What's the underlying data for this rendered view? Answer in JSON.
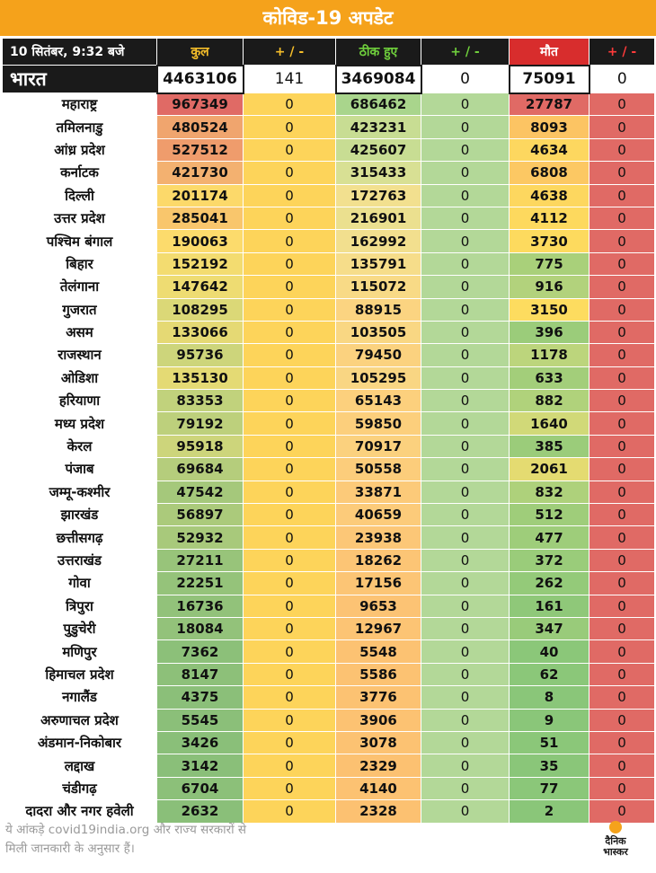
{
  "header": {
    "title": "कोविड-19 अपडेट"
  },
  "columns": {
    "date": "10 सितंबर, 9:32 बजे",
    "total": "कुल",
    "total_delta": "+ / -",
    "recovered": "ठीक हुए",
    "recovered_delta": "+ / -",
    "deaths": "मौत",
    "deaths_delta": "+ / -"
  },
  "national": {
    "name": "भारत",
    "total": "4463106",
    "total_delta": "141",
    "recovered": "3469084",
    "recovered_delta": "0",
    "deaths": "75091",
    "deaths_delta": "0"
  },
  "states": [
    {
      "name": "महाराष्ट्र",
      "total": "967349",
      "total_delta": "0",
      "recovered": "686462",
      "recovered_delta": "0",
      "deaths": "27787",
      "deaths_delta": "0",
      "colors": {
        "total": "#e06a65",
        "recovered": "#a9d58c",
        "deaths": "#e06a65"
      }
    },
    {
      "name": "तमिलनाडु",
      "total": "480524",
      "total_delta": "0",
      "recovered": "423231",
      "recovered_delta": "0",
      "deaths": "8093",
      "deaths_delta": "0",
      "colors": {
        "total": "#f0a56e",
        "recovered": "#c8dd93",
        "deaths": "#fcc463"
      }
    },
    {
      "name": "आंध्र प्रदेश",
      "total": "527512",
      "total_delta": "0",
      "recovered": "425607",
      "recovered_delta": "0",
      "deaths": "4634",
      "deaths_delta": "0",
      "colors": {
        "total": "#ef9c6c",
        "recovered": "#c8dd93",
        "deaths": "#fdd75f"
      }
    },
    {
      "name": "कर्नाटक",
      "total": "421730",
      "total_delta": "0",
      "recovered": "315433",
      "recovered_delta": "0",
      "deaths": "6808",
      "deaths_delta": "0",
      "colors": {
        "total": "#f3b170",
        "recovered": "#d8e094",
        "deaths": "#fcc863"
      }
    },
    {
      "name": "दिल्ली",
      "total": "201174",
      "total_delta": "0",
      "recovered": "172763",
      "recovered_delta": "0",
      "deaths": "4638",
      "deaths_delta": "0",
      "colors": {
        "total": "#fcd96a",
        "recovered": "#f2e08f",
        "deaths": "#fdd75f"
      }
    },
    {
      "name": "उत्तर प्रदेश",
      "total": "285041",
      "total_delta": "0",
      "recovered": "216901",
      "recovered_delta": "0",
      "deaths": "4112",
      "deaths_delta": "0",
      "colors": {
        "total": "#f9c66c",
        "recovered": "#ebe08f",
        "deaths": "#fdd95e"
      }
    },
    {
      "name": "पश्चिम बंगाल",
      "total": "190063",
      "total_delta": "0",
      "recovered": "162992",
      "recovered_delta": "0",
      "deaths": "3730",
      "deaths_delta": "0",
      "colors": {
        "total": "#fcdb6c",
        "recovered": "#f2df8e",
        "deaths": "#fdda5e"
      }
    },
    {
      "name": "बिहार",
      "total": "152192",
      "total_delta": "0",
      "recovered": "135791",
      "recovered_delta": "0",
      "deaths": "775",
      "deaths_delta": "0",
      "colors": {
        "total": "#f3dc70",
        "recovered": "#f6dd8a",
        "deaths": "#a9d07a"
      }
    },
    {
      "name": "तेलंगाना",
      "total": "147642",
      "total_delta": "0",
      "recovered": "115072",
      "recovered_delta": "0",
      "deaths": "916",
      "deaths_delta": "0",
      "colors": {
        "total": "#eedc72",
        "recovered": "#f8da86",
        "deaths": "#b2d27c"
      }
    },
    {
      "name": "गुजरात",
      "total": "108295",
      "total_delta": "0",
      "recovered": "88915",
      "recovered_delta": "0",
      "deaths": "3150",
      "deaths_delta": "0",
      "colors": {
        "total": "#dbd877",
        "recovered": "#fbd481",
        "deaths": "#fddc5f"
      }
    },
    {
      "name": "असम",
      "total": "133066",
      "total_delta": "0",
      "recovered": "103505",
      "recovered_delta": "0",
      "deaths": "396",
      "deaths_delta": "0",
      "colors": {
        "total": "#e5d974",
        "recovered": "#f9d783",
        "deaths": "#9bcc7a"
      }
    },
    {
      "name": "राजस्थान",
      "total": "95736",
      "total_delta": "0",
      "recovered": "79450",
      "recovered_delta": "0",
      "deaths": "1178",
      "deaths_delta": "0",
      "colors": {
        "total": "#cdd57b",
        "recovered": "#fbd27f",
        "deaths": "#bcd57c"
      }
    },
    {
      "name": "ओडिशा",
      "total": "135130",
      "total_delta": "0",
      "recovered": "105295",
      "recovered_delta": "0",
      "deaths": "633",
      "deaths_delta": "0",
      "colors": {
        "total": "#e4da74",
        "recovered": "#f9d683",
        "deaths": "#a3ce7a"
      }
    },
    {
      "name": "हरियाणा",
      "total": "83353",
      "total_delta": "0",
      "recovered": "65143",
      "recovered_delta": "0",
      "deaths": "882",
      "deaths_delta": "0",
      "colors": {
        "total": "#c1d27c",
        "recovered": "#fcd07d",
        "deaths": "#b0d27b"
      }
    },
    {
      "name": "मध्य प्रदेश",
      "total": "79192",
      "total_delta": "0",
      "recovered": "59850",
      "recovered_delta": "0",
      "deaths": "1640",
      "deaths_delta": "0",
      "colors": {
        "total": "#bdd07c",
        "recovered": "#fccf7c",
        "deaths": "#d1d978"
      }
    },
    {
      "name": "केरल",
      "total": "95918",
      "total_delta": "0",
      "recovered": "70917",
      "recovered_delta": "0",
      "deaths": "385",
      "deaths_delta": "0",
      "colors": {
        "total": "#cdd57b",
        "recovered": "#fbd17e",
        "deaths": "#9bcc7a"
      }
    },
    {
      "name": "पंजाब",
      "total": "69684",
      "total_delta": "0",
      "recovered": "50558",
      "recovered_delta": "0",
      "deaths": "2061",
      "deaths_delta": "0",
      "colors": {
        "total": "#b5cd7c",
        "recovered": "#fccd7b",
        "deaths": "#e4db71"
      }
    },
    {
      "name": "जम्मू-कश्मीर",
      "total": "47542",
      "total_delta": "0",
      "recovered": "33871",
      "recovered_delta": "0",
      "deaths": "832",
      "deaths_delta": "0",
      "colors": {
        "total": "#a5c87b",
        "recovered": "#fcca79",
        "deaths": "#aed17b"
      }
    },
    {
      "name": "झारखंड",
      "total": "56897",
      "total_delta": "0",
      "recovered": "40659",
      "recovered_delta": "0",
      "deaths": "512",
      "deaths_delta": "0",
      "colors": {
        "total": "#abca7b",
        "recovered": "#fccb7a",
        "deaths": "#9fcd7a"
      }
    },
    {
      "name": "छत्तीसगढ़",
      "total": "52932",
      "total_delta": "0",
      "recovered": "23938",
      "recovered_delta": "0",
      "deaths": "477",
      "deaths_delta": "0",
      "colors": {
        "total": "#a8c97b",
        "recovered": "#fcc777",
        "deaths": "#9ecd7a"
      }
    },
    {
      "name": "उत्तराखंड",
      "total": "27211",
      "total_delta": "0",
      "recovered": "18262",
      "recovered_delta": "0",
      "deaths": "372",
      "deaths_delta": "0",
      "colors": {
        "total": "#98c47a",
        "recovered": "#fcc575",
        "deaths": "#9acc7a"
      }
    },
    {
      "name": "गोवा",
      "total": "22251",
      "total_delta": "0",
      "recovered": "17156",
      "recovered_delta": "0",
      "deaths": "262",
      "deaths_delta": "0",
      "colors": {
        "total": "#95c37a",
        "recovered": "#fcc575",
        "deaths": "#94ca79"
      }
    },
    {
      "name": "त्रिपुरा",
      "total": "16736",
      "total_delta": "0",
      "recovered": "9653",
      "recovered_delta": "0",
      "deaths": "161",
      "deaths_delta": "0",
      "colors": {
        "total": "#92c27a",
        "recovered": "#fcc374",
        "deaths": "#8fc879"
      }
    },
    {
      "name": "पुडुचेरी",
      "total": "18084",
      "total_delta": "0",
      "recovered": "12967",
      "recovered_delta": "0",
      "deaths": "347",
      "deaths_delta": "0",
      "colors": {
        "total": "#93c27a",
        "recovered": "#fcc474",
        "deaths": "#99cb7a"
      }
    },
    {
      "name": "मणिपुर",
      "total": "7362",
      "total_delta": "0",
      "recovered": "5548",
      "recovered_delta": "0",
      "deaths": "40",
      "deaths_delta": "0",
      "colors": {
        "total": "#8cc079",
        "recovered": "#fcc272",
        "deaths": "#8bc779"
      }
    },
    {
      "name": "हिमाचल प्रदेश",
      "total": "8147",
      "total_delta": "0",
      "recovered": "5586",
      "recovered_delta": "0",
      "deaths": "62",
      "deaths_delta": "0",
      "colors": {
        "total": "#8dc079",
        "recovered": "#fcc272",
        "deaths": "#8bc779"
      }
    },
    {
      "name": "नगालैंड",
      "total": "4375",
      "total_delta": "0",
      "recovered": "3776",
      "recovered_delta": "0",
      "deaths": "8",
      "deaths_delta": "0",
      "colors": {
        "total": "#8bbf79",
        "recovered": "#fcc272",
        "deaths": "#8ac679"
      }
    },
    {
      "name": "अरुणाचल प्रदेश",
      "total": "5545",
      "total_delta": "0",
      "recovered": "3906",
      "recovered_delta": "0",
      "deaths": "9",
      "deaths_delta": "0",
      "colors": {
        "total": "#8bbf79",
        "recovered": "#fcc272",
        "deaths": "#8ac679"
      }
    },
    {
      "name": "अंडमान-निकोबार",
      "total": "3426",
      "total_delta": "0",
      "recovered": "3078",
      "recovered_delta": "0",
      "deaths": "51",
      "deaths_delta": "0",
      "colors": {
        "total": "#8abf79",
        "recovered": "#fcc272",
        "deaths": "#8bc779"
      }
    },
    {
      "name": "लद्दाख",
      "total": "3142",
      "total_delta": "0",
      "recovered": "2329",
      "recovered_delta": "0",
      "deaths": "35",
      "deaths_delta": "0",
      "colors": {
        "total": "#8abf79",
        "recovered": "#fcc171",
        "deaths": "#8ac679"
      }
    },
    {
      "name": "चंडीगढ़",
      "total": "6704",
      "total_delta": "0",
      "recovered": "4140",
      "recovered_delta": "0",
      "deaths": "77",
      "deaths_delta": "0",
      "colors": {
        "total": "#8cc079",
        "recovered": "#fcc272",
        "deaths": "#8bc779"
      }
    },
    {
      "name": "दादरा और नगर हवेली",
      "total": "2632",
      "total_delta": "0",
      "recovered": "2328",
      "recovered_delta": "0",
      "deaths": "2",
      "deaths_delta": "0",
      "colors": {
        "total": "#8abf79",
        "recovered": "#fcc171",
        "deaths": "#8ac679"
      }
    }
  ],
  "footer": {
    "note_line1": "ये आंकड़े covid19india.org और राज्य सरकारों से",
    "note_line2": "मिली जानकारी के अनुसार हैं।"
  },
  "logo": {
    "line1": "दैनिक",
    "line2": "भास्कर"
  },
  "colors": {
    "banner": "#f5a21b",
    "header_bg": "#1a1a1a",
    "delta_total": "#fdd45a",
    "delta_recovered": "#b3d898",
    "delta_deaths": "#e06a65"
  }
}
